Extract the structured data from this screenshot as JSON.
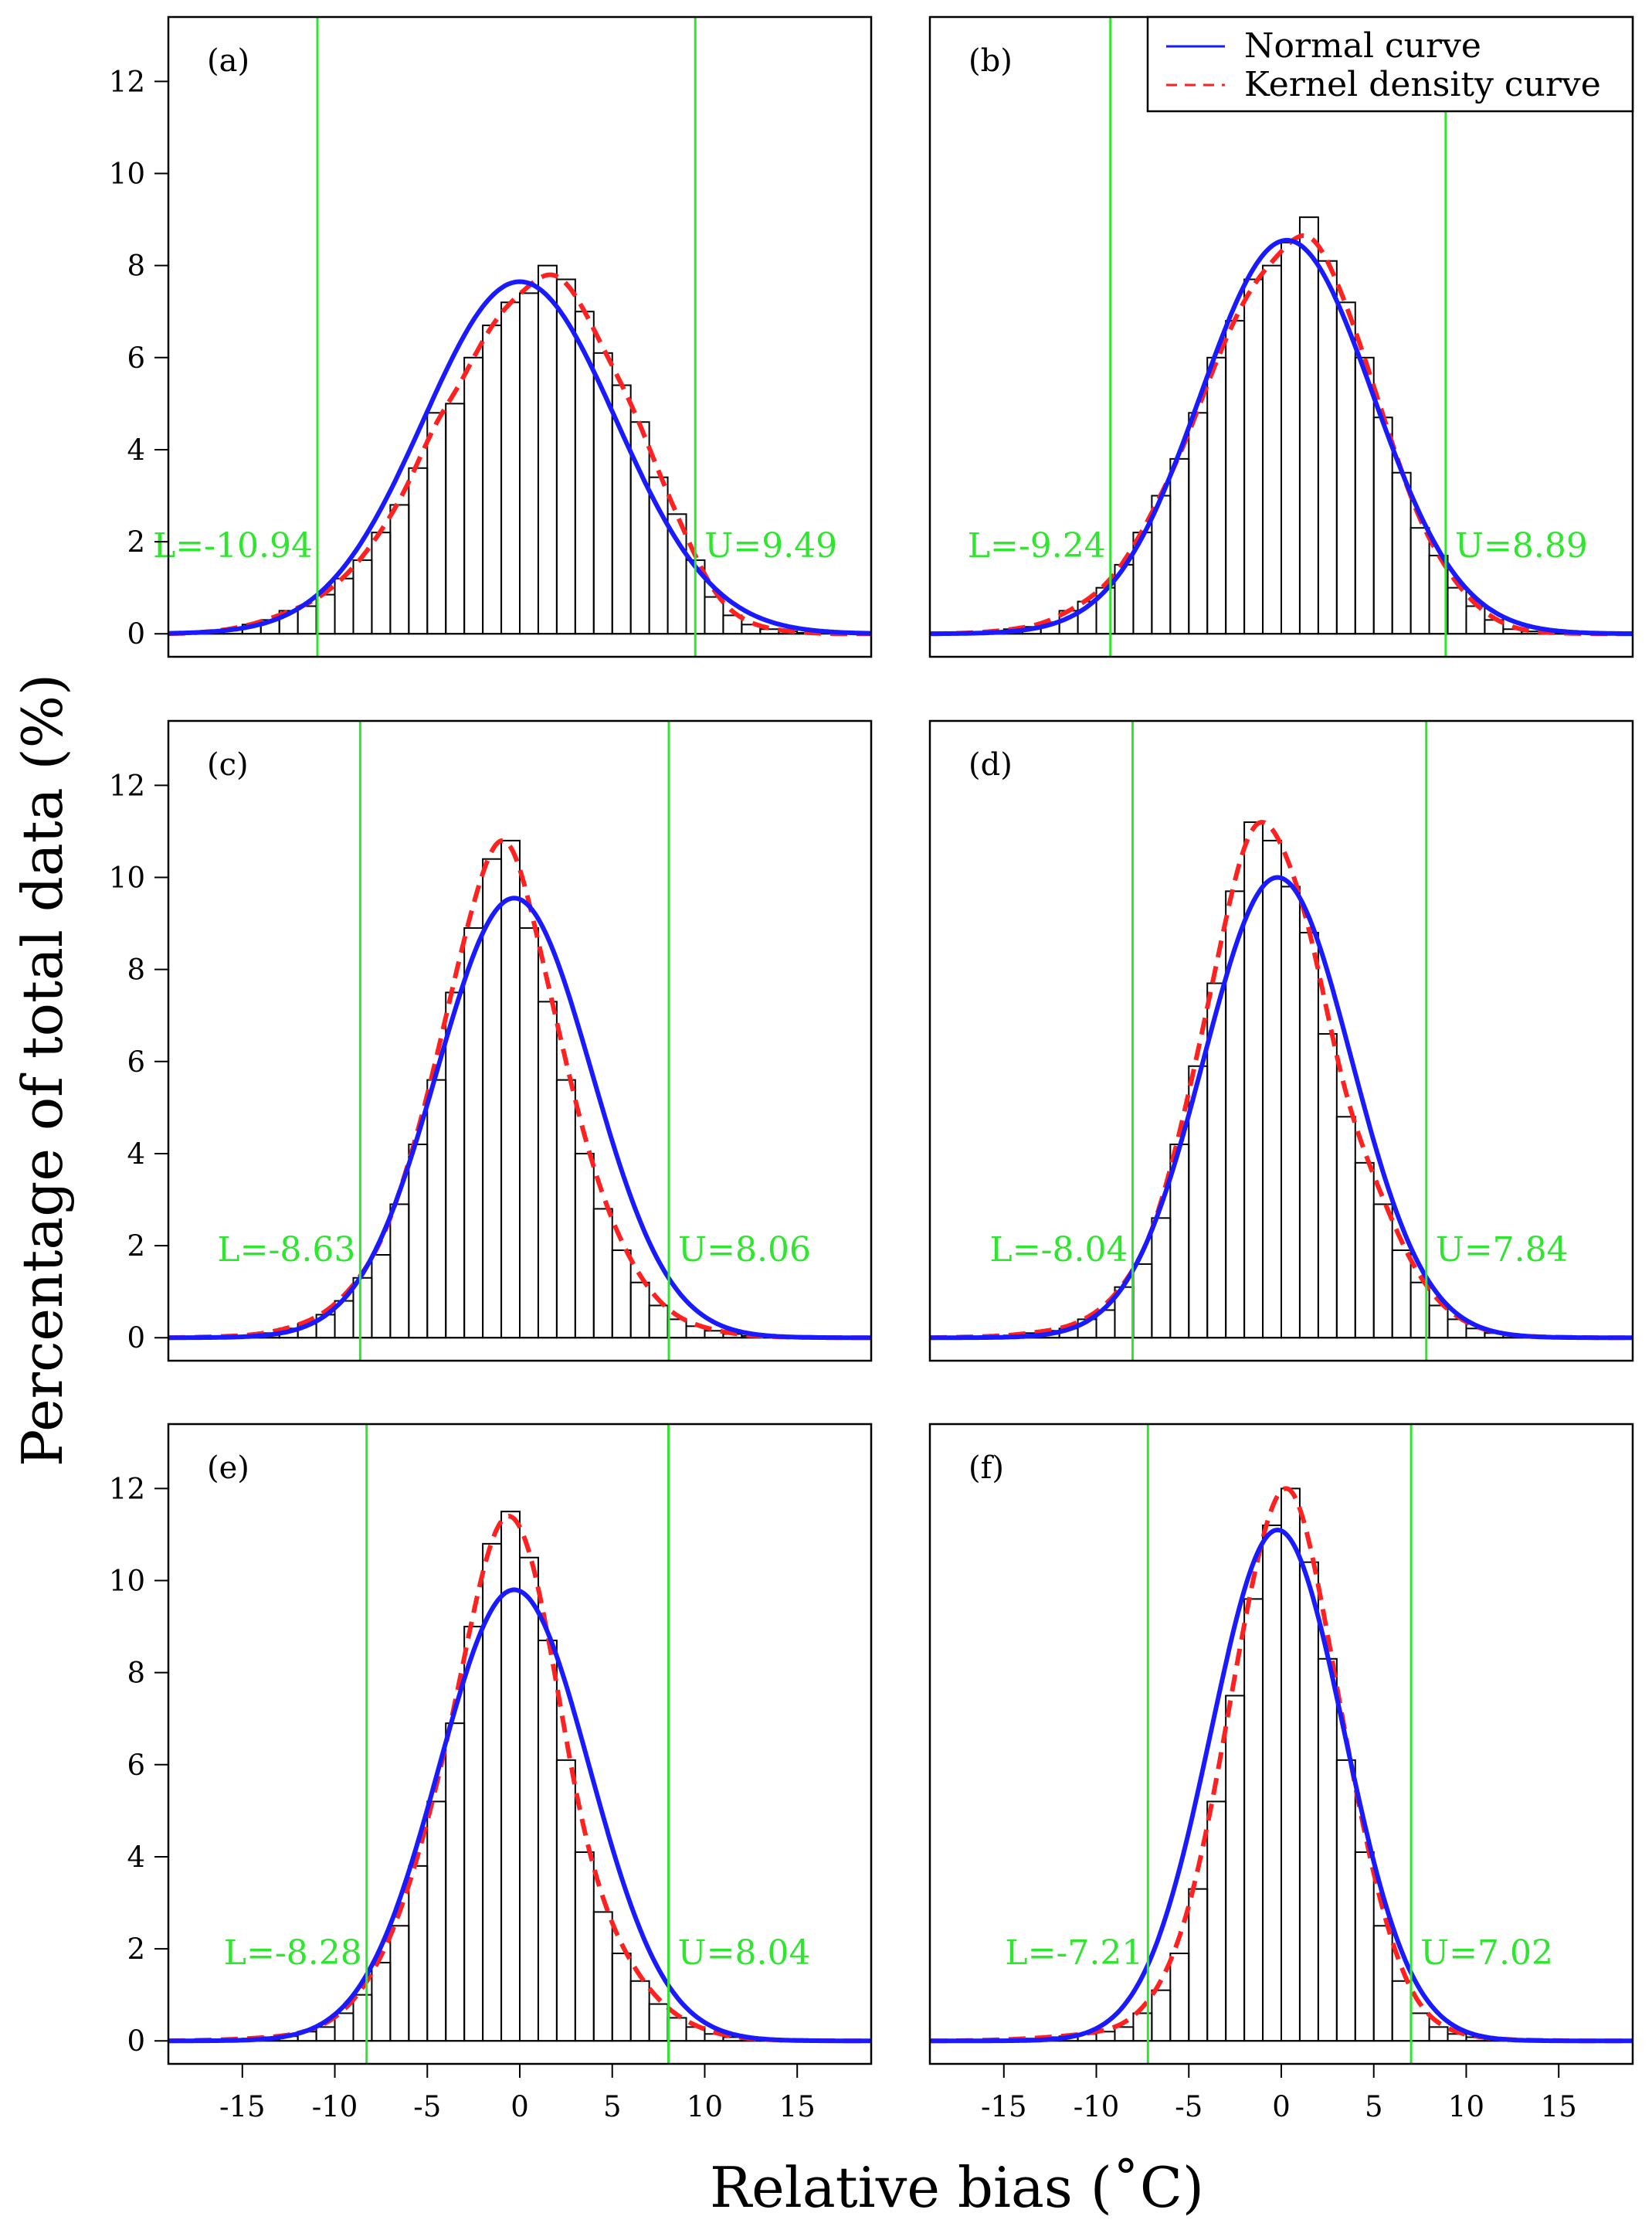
{
  "figure": {
    "ylabel": "Percentage of total data (%)",
    "xlabel": "Relative bias (˚C)",
    "x_ticks": [
      -15,
      -10,
      -5,
      0,
      5,
      10,
      15
    ],
    "y_ticks": [
      0,
      2,
      4,
      6,
      8,
      10,
      12
    ],
    "xlim": [
      -19,
      19
    ],
    "ylim": [
      -0.5,
      13.4
    ],
    "colors": {
      "normal": "#1a1aff",
      "kernel": "#ff2020",
      "bounds": "#2ee62e",
      "bars": "#000000"
    },
    "legend": [
      {
        "label": "Normal curve",
        "style": "solid",
        "color": "#1a1aff"
      },
      {
        "label": "Kernel density curve",
        "style": "dashed",
        "color": "#ff2020"
      }
    ]
  },
  "chart_data": [
    {
      "type": "bar",
      "panel": "(a)",
      "bin_width": 1,
      "bin_centers": [
        -17.5,
        -16.5,
        -15.5,
        -14.5,
        -13.5,
        -12.5,
        -11.5,
        -10.5,
        -9.5,
        -8.5,
        -7.5,
        -6.5,
        -5.5,
        -4.5,
        -3.5,
        -2.5,
        -1.5,
        -0.5,
        0.5,
        1.5,
        2.5,
        3.5,
        4.5,
        5.5,
        6.5,
        7.5,
        8.5,
        9.5,
        10.5,
        11.5,
        12.5,
        13.5,
        14.5,
        15.5
      ],
      "values": [
        0.02,
        0.05,
        0.1,
        0.2,
        0.3,
        0.5,
        0.6,
        0.85,
        1.2,
        1.6,
        2.2,
        2.8,
        3.6,
        4.8,
        5.0,
        6.0,
        6.7,
        7.2,
        7.4,
        8.0,
        7.7,
        7.0,
        6.1,
        5.4,
        4.6,
        3.4,
        2.6,
        1.6,
        0.8,
        0.4,
        0.2,
        0.1,
        0.05,
        0.02
      ],
      "normal": {
        "mean": 0.0,
        "peak": 7.65
      },
      "kernel_peak": 7.8,
      "lower": -10.94,
      "upper": 9.49,
      "lower_label": "L=-10.94",
      "upper_label": "U=9.49"
    },
    {
      "type": "bar",
      "panel": "(b)",
      "bin_width": 1,
      "bin_centers": [
        -17.5,
        -16.5,
        -15.5,
        -14.5,
        -13.5,
        -12.5,
        -11.5,
        -10.5,
        -9.5,
        -8.5,
        -7.5,
        -6.5,
        -5.5,
        -4.5,
        -3.5,
        -2.5,
        -1.5,
        -0.5,
        0.5,
        1.5,
        2.5,
        3.5,
        4.5,
        5.5,
        6.5,
        7.5,
        8.5,
        9.5,
        10.5,
        11.5,
        12.5,
        13.5,
        14.5,
        15.5
      ],
      "values": [
        0.01,
        0.02,
        0.05,
        0.1,
        0.15,
        0.25,
        0.5,
        0.7,
        1.0,
        1.5,
        2.2,
        3.0,
        3.8,
        4.8,
        6.0,
        6.8,
        7.7,
        8.0,
        8.5,
        9.05,
        8.1,
        7.2,
        6.0,
        4.7,
        3.5,
        2.3,
        1.7,
        1.0,
        0.6,
        0.3,
        0.1,
        0.05,
        0.02,
        0.01
      ],
      "normal": {
        "mean": 0.3,
        "peak": 8.55
      },
      "kernel_peak": 8.65,
      "lower": -9.24,
      "upper": 8.89,
      "lower_label": "L=-9.24",
      "upper_label": "U=8.89"
    },
    {
      "type": "bar",
      "panel": "(c)",
      "bin_width": 1,
      "bin_centers": [
        -17.5,
        -16.5,
        -15.5,
        -14.5,
        -13.5,
        -12.5,
        -11.5,
        -10.5,
        -9.5,
        -8.5,
        -7.5,
        -6.5,
        -5.5,
        -4.5,
        -3.5,
        -2.5,
        -1.5,
        -0.5,
        0.5,
        1.5,
        2.5,
        3.5,
        4.5,
        5.5,
        6.5,
        7.5,
        8.5,
        9.5,
        10.5,
        11.5,
        12.5,
        13.5,
        14.5,
        15.5
      ],
      "values": [
        0.01,
        0.02,
        0.03,
        0.05,
        0.1,
        0.2,
        0.3,
        0.5,
        0.8,
        1.3,
        1.8,
        2.9,
        4.2,
        5.6,
        7.5,
        8.9,
        10.4,
        10.8,
        8.9,
        7.3,
        5.6,
        4.0,
        2.8,
        1.9,
        1.2,
        0.7,
        0.4,
        0.25,
        0.15,
        0.08,
        0.04,
        0.02,
        0.01,
        0.01
      ],
      "normal": {
        "mean": -0.3,
        "peak": 9.55
      },
      "kernel_peak": 10.8,
      "lower": -8.63,
      "upper": 8.06,
      "lower_label": "L=-8.63",
      "upper_label": "U=8.06"
    },
    {
      "type": "bar",
      "panel": "(d)",
      "bin_width": 1,
      "bin_centers": [
        -17.5,
        -16.5,
        -15.5,
        -14.5,
        -13.5,
        -12.5,
        -11.5,
        -10.5,
        -9.5,
        -8.5,
        -7.5,
        -6.5,
        -5.5,
        -4.5,
        -3.5,
        -2.5,
        -1.5,
        -0.5,
        0.5,
        1.5,
        2.5,
        3.5,
        4.5,
        5.5,
        6.5,
        7.5,
        8.5,
        9.5,
        10.5,
        11.5,
        12.5,
        13.5,
        14.5,
        15.5
      ],
      "values": [
        0.01,
        0.02,
        0.03,
        0.05,
        0.1,
        0.15,
        0.2,
        0.4,
        0.6,
        1.1,
        1.6,
        2.6,
        4.2,
        5.9,
        7.7,
        9.7,
        11.2,
        10.8,
        9.8,
        8.8,
        6.6,
        4.8,
        3.8,
        2.9,
        1.9,
        1.2,
        0.7,
        0.4,
        0.2,
        0.1,
        0.05,
        0.02,
        0.01,
        0.01
      ],
      "normal": {
        "mean": -0.2,
        "peak": 10.0
      },
      "kernel_peak": 11.2,
      "lower": -8.04,
      "upper": 7.84,
      "lower_label": "L=-8.04",
      "upper_label": "U=7.84"
    },
    {
      "type": "bar",
      "panel": "(e)",
      "bin_width": 1,
      "bin_centers": [
        -17.5,
        -16.5,
        -15.5,
        -14.5,
        -13.5,
        -12.5,
        -11.5,
        -10.5,
        -9.5,
        -8.5,
        -7.5,
        -6.5,
        -5.5,
        -4.5,
        -3.5,
        -2.5,
        -1.5,
        -0.5,
        0.5,
        1.5,
        2.5,
        3.5,
        4.5,
        5.5,
        6.5,
        7.5,
        8.5,
        9.5,
        10.5,
        11.5,
        12.5,
        13.5,
        14.5,
        15.5
      ],
      "values": [
        0.01,
        0.02,
        0.03,
        0.05,
        0.08,
        0.1,
        0.2,
        0.3,
        0.6,
        1.0,
        1.7,
        2.5,
        3.8,
        5.2,
        6.9,
        9.0,
        10.8,
        11.5,
        10.5,
        8.7,
        6.1,
        4.1,
        2.8,
        1.9,
        1.3,
        0.8,
        0.5,
        0.3,
        0.15,
        0.08,
        0.04,
        0.02,
        0.01,
        0.01
      ],
      "normal": {
        "mean": -0.3,
        "peak": 9.8
      },
      "kernel_peak": 11.4,
      "lower": -8.28,
      "upper": 8.04,
      "lower_label": "L=-8.28",
      "upper_label": "U=8.04"
    },
    {
      "type": "bar",
      "panel": "(f)",
      "bin_width": 1,
      "bin_centers": [
        -17.5,
        -16.5,
        -15.5,
        -14.5,
        -13.5,
        -12.5,
        -11.5,
        -10.5,
        -9.5,
        -8.5,
        -7.5,
        -6.5,
        -5.5,
        -4.5,
        -3.5,
        -2.5,
        -1.5,
        -0.5,
        0.5,
        1.5,
        2.5,
        3.5,
        4.5,
        5.5,
        6.5,
        7.5,
        8.5,
        9.5,
        10.5,
        11.5,
        12.5,
        13.5,
        14.5,
        15.5
      ],
      "values": [
        0.0,
        0.01,
        0.02,
        0.03,
        0.05,
        0.08,
        0.1,
        0.15,
        0.2,
        0.3,
        0.6,
        1.1,
        1.9,
        3.3,
        5.2,
        7.5,
        9.6,
        11.2,
        12.0,
        10.4,
        8.3,
        6.1,
        4.1,
        2.5,
        1.3,
        0.6,
        0.3,
        0.15,
        0.08,
        0.04,
        0.02,
        0.01,
        0.01,
        0.0
      ],
      "normal": {
        "mean": -0.2,
        "peak": 11.1
      },
      "kernel_peak": 12.0,
      "lower": -7.21,
      "upper": 7.02,
      "lower_label": "L=-7.21",
      "upper_label": "U=7.02"
    }
  ]
}
